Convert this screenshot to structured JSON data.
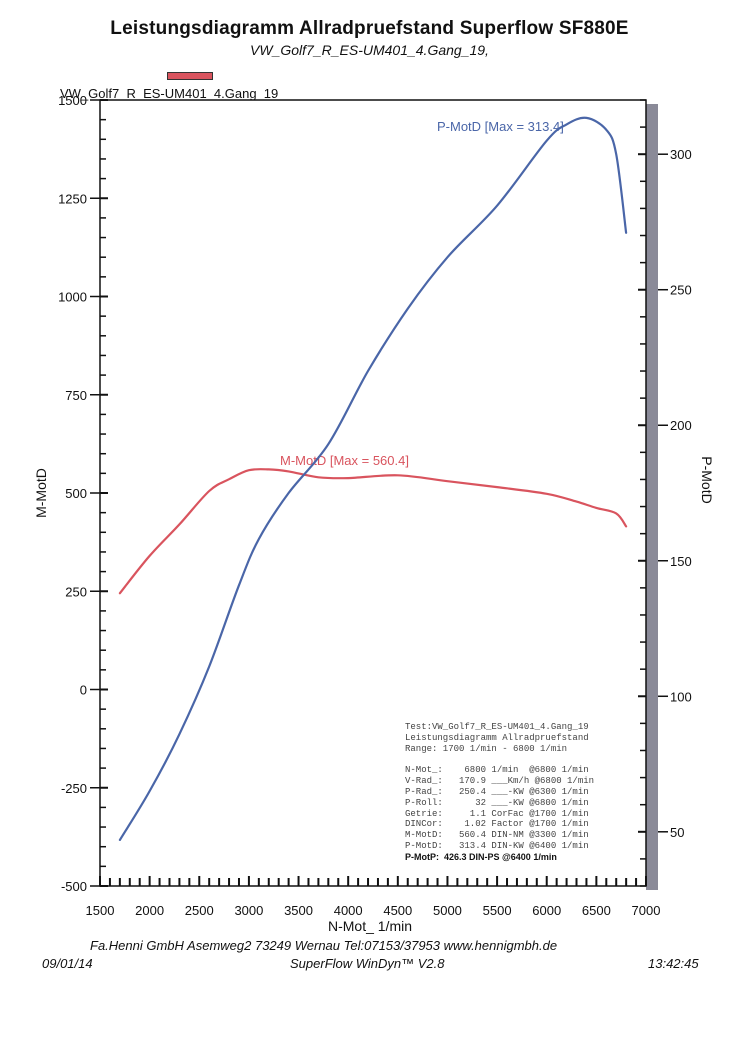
{
  "header": {
    "title": "Leistungsdiagramm Allradpruefstand Superflow SF880E",
    "subtitle": "VW_Golf7_R_ES-UM401_4.Gang_19,"
  },
  "legend": {
    "label": "VW_Golf7_R_ES-UM401_4.Gang_19",
    "color": "#d9545e"
  },
  "chart_data": {
    "type": "line",
    "xlabel": "N-Mot_ 1/min",
    "ylabel_left": "M-MotD",
    "ylabel_right": "P-MotD",
    "xlim": [
      1500,
      7000
    ],
    "ylim_left": [
      -500,
      1500
    ],
    "ylim_right": [
      30,
      320
    ],
    "x_ticks": [
      "1500",
      "2000",
      "2500",
      "3000",
      "3500",
      "4000",
      "4500",
      "5000",
      "5500",
      "6000",
      "6500",
      "7000"
    ],
    "y_left_ticks": [
      "1500",
      "1250",
      "1000",
      "750",
      "500",
      "250",
      "0",
      "-250",
      "-500"
    ],
    "y_right_ticks": [
      "300",
      "250",
      "200",
      "150",
      "100",
      "50"
    ],
    "series": [
      {
        "name": "M-MotD",
        "label": "M-MotD [Max = 560.4]",
        "axis": "left",
        "color": "#d9545e",
        "x": [
          1700,
          2000,
          2300,
          2600,
          2800,
          3000,
          3200,
          3400,
          3700,
          4000,
          4500,
          5000,
          5500,
          6000,
          6300,
          6500,
          6700,
          6800
        ],
        "y": [
          245,
          340,
          420,
          505,
          535,
          558,
          560,
          555,
          540,
          538,
          545,
          530,
          515,
          498,
          478,
          462,
          448,
          415
        ]
      },
      {
        "name": "P-MotD",
        "label": "P-MotD [Max = 313.4]",
        "axis": "right",
        "color": "#4a66a8",
        "x": [
          1700,
          2000,
          2300,
          2600,
          2900,
          3100,
          3400,
          3800,
          4200,
          4600,
          5000,
          5500,
          6000,
          6200,
          6400,
          6600,
          6700,
          6800
        ],
        "y": [
          47,
          65,
          86,
          111,
          141,
          158,
          175,
          193,
          220,
          243,
          262,
          281,
          305,
          311,
          313.4,
          309,
          300,
          271
        ]
      }
    ]
  },
  "info": {
    "line1": "Test:VW_Golf7_R_ES-UM401_4.Gang_19",
    "line2": "Leistungsdiagramm Allradpruefstand",
    "line3": "Range: 1700 1/min - 6800 1/min",
    "rows": [
      "N-Mot_:    6800 1/min  @6800 1/min",
      "V-Rad_:   170.9 ___Km/h @6800 1/min",
      "P-Rad_:   250.4 ___-KW @6300 1/min",
      "P-Roll:      32 ___-KW @6800 1/min",
      "Getrie:     1.1 CorFac @1700 1/min",
      "DINCor:    1.02 Factor @1700 1/min",
      "M-MotD:   560.4 DIN-NM @3300 1/min",
      "P-MotD:   313.4 DIN-KW @6400 1/min"
    ],
    "summary": "P-MotP:  426.3 DIN-PS @6400 1/min"
  },
  "footer": {
    "company": "Fa.Henni GmbH   Asemweg2   73249 Wernau   Tel:07153/37953   www.hennigmbh.de",
    "date": "09/01/14",
    "software": "SuperFlow WinDyn™ V2.8",
    "time": "13:42:45"
  }
}
